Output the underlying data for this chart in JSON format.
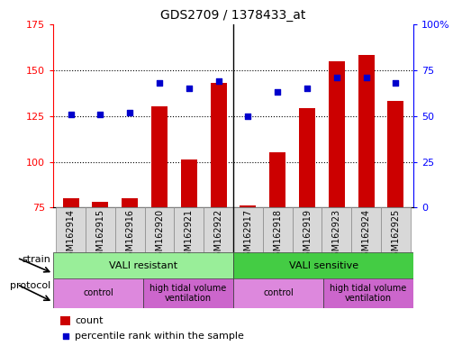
{
  "title": "GDS2709 / 1378433_at",
  "samples": [
    "GSM162914",
    "GSM162915",
    "GSM162916",
    "GSM162920",
    "GSM162921",
    "GSM162922",
    "GSM162917",
    "GSM162918",
    "GSM162919",
    "GSM162923",
    "GSM162924",
    "GSM162925"
  ],
  "counts": [
    80,
    78,
    80,
    130,
    101,
    143,
    76,
    105,
    129,
    155,
    158,
    133
  ],
  "percentiles": [
    51,
    51,
    52,
    68,
    65,
    69,
    50,
    63,
    65,
    71,
    71,
    68
  ],
  "ylim_left": [
    75,
    175
  ],
  "ylim_right": [
    0,
    100
  ],
  "left_ticks": [
    75,
    100,
    125,
    150,
    175
  ],
  "right_ticks": [
    0,
    25,
    50,
    75,
    100
  ],
  "right_tick_labels": [
    "0",
    "25",
    "50",
    "75",
    "100%"
  ],
  "bar_color": "#cc0000",
  "dot_color": "#0000cc",
  "strain_groups": [
    {
      "label": "VALI resistant",
      "start": 0,
      "end": 6,
      "color": "#99ee99"
    },
    {
      "label": "VALI sensitive",
      "start": 6,
      "end": 12,
      "color": "#44cc44"
    }
  ],
  "protocol_groups": [
    {
      "label": "control",
      "start": 0,
      "end": 3,
      "color": "#dd88dd"
    },
    {
      "label": "high tidal volume\nventilation",
      "start": 3,
      "end": 6,
      "color": "#cc66cc"
    },
    {
      "label": "control",
      "start": 6,
      "end": 9,
      "color": "#dd88dd"
    },
    {
      "label": "high tidal volume\nventilation",
      "start": 9,
      "end": 12,
      "color": "#cc66cc"
    }
  ],
  "legend_count_label": "count",
  "legend_percentile_label": "percentile rank within the sample",
  "grid_color": "#000000",
  "background_color": "#ffffff"
}
